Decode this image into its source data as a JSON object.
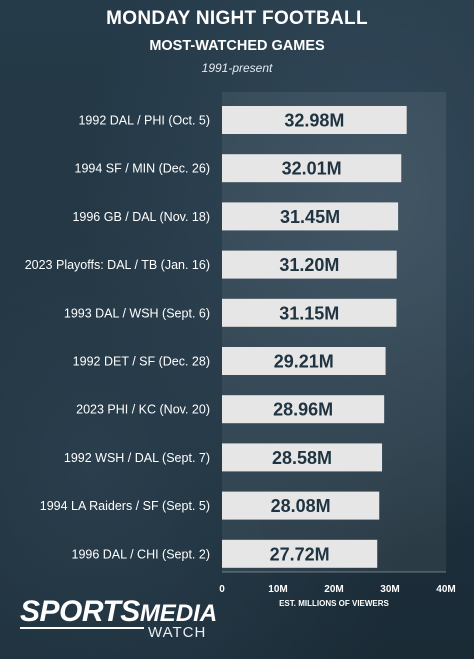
{
  "header": {
    "title": "MONDAY NIGHT FOOTBALL",
    "subtitle": "MOST-WATCHED GAMES",
    "note": "1991-present"
  },
  "brand": {
    "main": "SPORTS",
    "main2": "MEDIA",
    "sub": "WATCH"
  },
  "colors": {
    "background": "#1f3340",
    "bar": "#e6e6e6",
    "bar_text": "#1f3340",
    "text": "#ffffff"
  },
  "chart_data": {
    "type": "bar",
    "orientation": "horizontal",
    "title": "MONDAY NIGHT FOOTBALL",
    "subtitle": "MOST-WATCHED GAMES",
    "note": "1991-present",
    "xlabel": "EST. MILLIONS OF VIEWERS",
    "ylabel": "",
    "xlim": [
      0,
      40
    ],
    "xticks": [
      0,
      10,
      20,
      30,
      40
    ],
    "xtick_labels": [
      "0",
      "10M",
      "20M",
      "30M",
      "40M"
    ],
    "grid": false,
    "categories": [
      "1992 DAL / PHI (Oct. 5)",
      "1994 SF / MIN (Dec. 26)",
      "1996 GB / DAL (Nov. 18)",
      "2023 Playoffs: DAL / TB (Jan. 16)",
      "1993 DAL / WSH (Sept. 6)",
      "1992 DET / SF (Dec. 28)",
      "2023 PHI / KC (Nov. 20)",
      "1992 WSH / DAL (Sept. 7)",
      "1994 LA Raiders / SF (Sept. 5)",
      "1996 DAL / CHI (Sept. 2)"
    ],
    "values": [
      32.98,
      32.01,
      31.45,
      31.2,
      31.15,
      29.21,
      28.96,
      28.58,
      28.08,
      27.72
    ],
    "data_labels": [
      "32.98M",
      "32.01M",
      "31.45M",
      "31.20M",
      "31.15M",
      "29.21M",
      "28.96M",
      "28.58M",
      "28.08M",
      "27.72M"
    ]
  }
}
